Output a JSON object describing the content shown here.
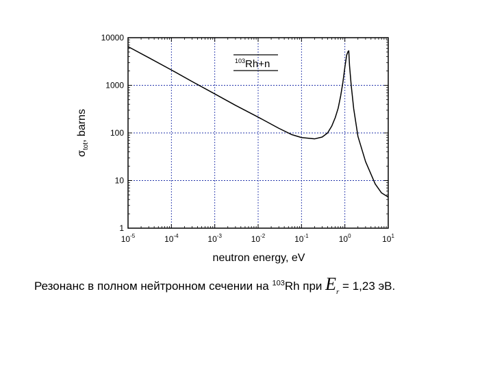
{
  "chart_data": {
    "type": "line",
    "title": "",
    "xlabel": "neutron energy, eV",
    "ylabel_main": "σ",
    "ylabel_sub": "tot",
    "ylabel_rest": ", barns",
    "xscale": "log",
    "yscale": "log",
    "xlim": [
      1e-05,
      10
    ],
    "ylim": [
      1,
      10000
    ],
    "grid": true,
    "x_ticks": [
      {
        "base": "10",
        "exp": "-5"
      },
      {
        "base": "10",
        "exp": "-4"
      },
      {
        "base": "10",
        "exp": "-3"
      },
      {
        "base": "10",
        "exp": "-2"
      },
      {
        "base": "10",
        "exp": "-1"
      },
      {
        "base": "10",
        "exp": "0"
      },
      {
        "base": "10",
        "exp": "1"
      }
    ],
    "y_ticks": [
      "1",
      "10",
      "100",
      "1000",
      "10000"
    ],
    "legend": {
      "sup": "103",
      "text": "Rh+n",
      "placement": "top-center"
    },
    "series": [
      {
        "x": [
          1e-05,
          3e-05,
          0.0001,
          0.0003,
          0.001,
          0.003,
          0.01,
          0.03,
          0.06,
          0.1,
          0.2,
          0.3,
          0.4,
          0.5,
          0.6,
          0.7,
          0.8,
          0.9,
          1.0,
          1.1,
          1.18,
          1.23,
          1.28,
          1.4,
          1.6,
          2.0,
          3.0,
          5.0,
          7.0,
          10.0
        ],
        "y": [
          6500,
          3800,
          2100,
          1200,
          660,
          380,
          215,
          125,
          92,
          80,
          75,
          82,
          100,
          140,
          210,
          330,
          600,
          1150,
          2400,
          4300,
          5100,
          5300,
          2600,
          1000,
          320,
          85,
          25,
          8.5,
          5.5,
          4.5
        ]
      }
    ]
  },
  "caption": {
    "text_before": "Резонанс в полном нейтронном сечении на ",
    "sup": "103",
    "text_middle": "Rh при ",
    "er_symbol": "E",
    "er_sub": "r",
    "text_after": " = 1,23 эВ."
  }
}
